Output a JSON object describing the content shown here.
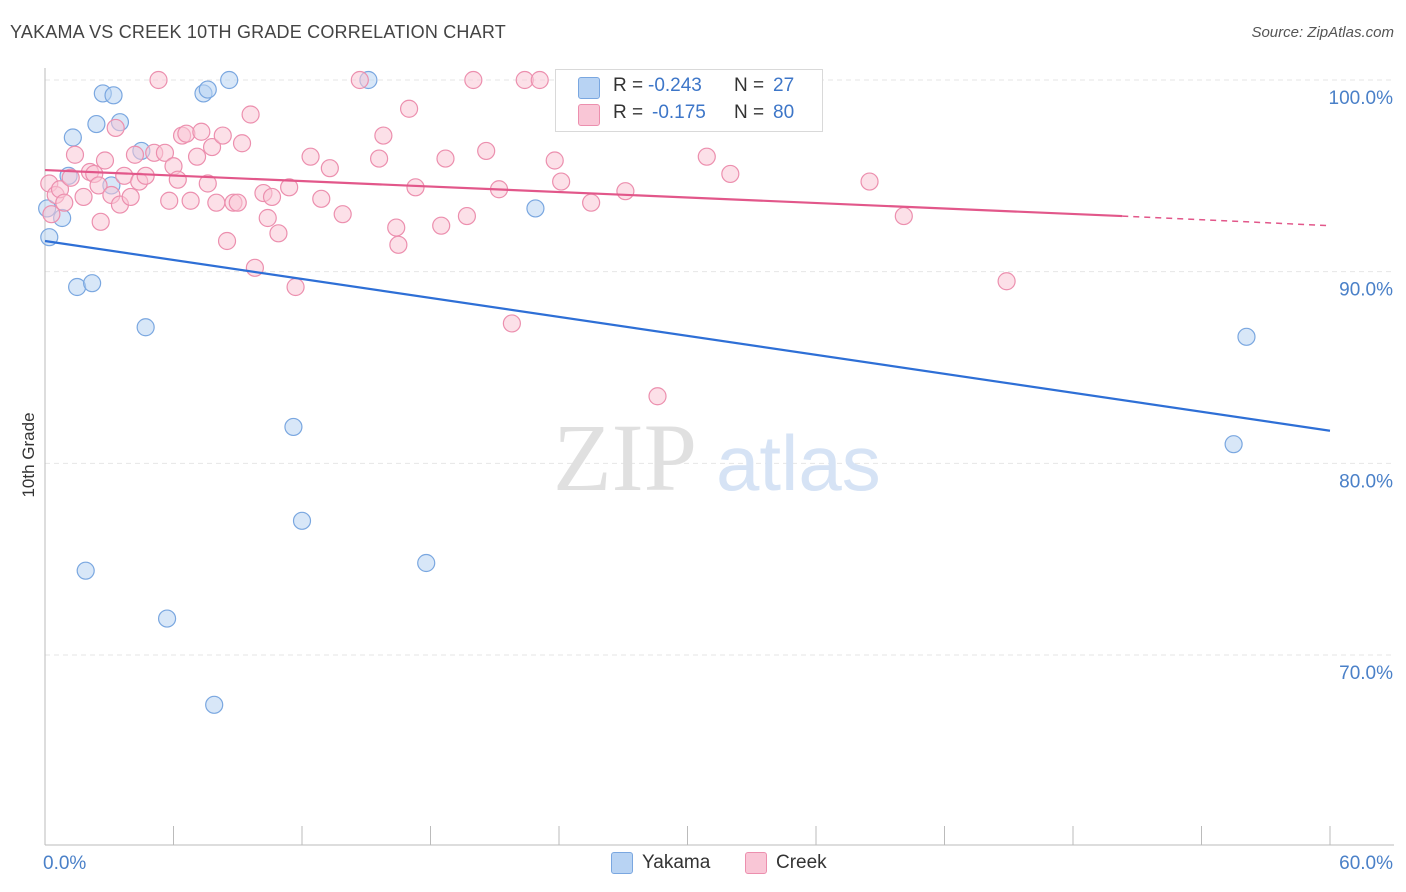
{
  "title": "YAKAMA VS CREEK 10TH GRADE CORRELATION CHART",
  "source": "Source: ZipAtlas.com",
  "watermark": {
    "zip": "ZIP",
    "atlas": "atlas"
  },
  "legend": {
    "rows": [
      {
        "r_label": "R =",
        "r_value": "-0.243",
        "n_label": "N =",
        "n_value": "27",
        "color": "#b8d3f3",
        "border": "#7aa7e0"
      },
      {
        "r_label": "R =",
        "r_value": "-0.175",
        "n_label": "N =",
        "n_value": "80",
        "color": "#f9c6d6",
        "border": "#ec8fae"
      }
    ]
  },
  "bottom_legend": [
    {
      "label": "Yakama",
      "color": "#b8d3f3",
      "border": "#7aa7e0"
    },
    {
      "label": "Creek",
      "color": "#f9c6d6",
      "border": "#ec8fae"
    }
  ],
  "chart_data": {
    "type": "scatter",
    "title": "YAKAMA VS CREEK 10TH GRADE CORRELATION CHART",
    "xlabel": "",
    "ylabel": "10th Grade",
    "xlim": [
      0,
      60
    ],
    "ylim": [
      60,
      101.5
    ],
    "x_tick_labels": [
      {
        "value": 0,
        "label": "0.0%"
      },
      {
        "value": 60,
        "label": "60.0%"
      }
    ],
    "y_tick_labels": [
      {
        "value": 100,
        "label": "100.0%"
      },
      {
        "value": 90,
        "label": "90.0%"
      },
      {
        "value": 80,
        "label": "80.0%"
      },
      {
        "value": 70,
        "label": "70.0%"
      }
    ],
    "grid": true,
    "series": [
      {
        "name": "Yakama",
        "color": "#b8d3f3",
        "stroke": "#7aa7e0",
        "line_color": "#2e6fd6",
        "trend": {
          "x": [
            0,
            60
          ],
          "y": [
            91.6,
            81.7
          ]
        },
        "points": [
          [
            0.1,
            93.3
          ],
          [
            0.2,
            91.8
          ],
          [
            0.8,
            92.8
          ],
          [
            1.1,
            95.0
          ],
          [
            1.3,
            97.0
          ],
          [
            1.5,
            89.2
          ],
          [
            1.9,
            74.4
          ],
          [
            2.2,
            89.4
          ],
          [
            2.4,
            97.7
          ],
          [
            2.7,
            99.3
          ],
          [
            3.2,
            99.2
          ],
          [
            3.1,
            94.5
          ],
          [
            3.5,
            97.8
          ],
          [
            4.5,
            96.3
          ],
          [
            4.7,
            87.1
          ],
          [
            5.7,
            71.9
          ],
          [
            7.4,
            99.3
          ],
          [
            7.6,
            99.5
          ],
          [
            7.9,
            67.4
          ],
          [
            8.6,
            100.0
          ],
          [
            11.6,
            81.9
          ],
          [
            12.0,
            77.0
          ],
          [
            15.1,
            100.0
          ],
          [
            17.8,
            74.8
          ],
          [
            22.9,
            93.3
          ],
          [
            56.1,
            86.6
          ],
          [
            55.5,
            81.0
          ]
        ]
      },
      {
        "name": "Creek",
        "color": "#f9c6d6",
        "stroke": "#ec8fae",
        "line_color": "#e2578a",
        "trend": {
          "x": [
            0,
            50.3
          ],
          "y": [
            95.3,
            92.9
          ]
        },
        "trend_dashed": {
          "x": [
            50.3,
            60
          ],
          "y": [
            92.9,
            92.4
          ]
        },
        "points": [
          [
            0.2,
            94.6
          ],
          [
            0.3,
            93.0
          ],
          [
            0.5,
            94.0
          ],
          [
            0.7,
            94.3
          ],
          [
            0.9,
            93.6
          ],
          [
            1.2,
            94.9
          ],
          [
            1.4,
            96.1
          ],
          [
            1.8,
            93.9
          ],
          [
            2.1,
            95.2
          ],
          [
            2.3,
            95.1
          ],
          [
            2.5,
            94.5
          ],
          [
            2.6,
            92.6
          ],
          [
            2.8,
            95.8
          ],
          [
            3.1,
            94.0
          ],
          [
            3.3,
            97.5
          ],
          [
            3.5,
            93.5
          ],
          [
            3.7,
            95.0
          ],
          [
            4.0,
            93.9
          ],
          [
            4.2,
            96.1
          ],
          [
            4.4,
            94.7
          ],
          [
            4.7,
            95.0
          ],
          [
            5.1,
            96.2
          ],
          [
            5.3,
            100.0
          ],
          [
            5.6,
            96.2
          ],
          [
            5.8,
            93.7
          ],
          [
            6.0,
            95.5
          ],
          [
            6.2,
            94.8
          ],
          [
            6.4,
            97.1
          ],
          [
            6.6,
            97.2
          ],
          [
            6.8,
            93.7
          ],
          [
            7.1,
            96.0
          ],
          [
            7.3,
            97.3
          ],
          [
            7.6,
            94.6
          ],
          [
            7.8,
            96.5
          ],
          [
            8.0,
            93.6
          ],
          [
            8.3,
            97.1
          ],
          [
            8.5,
            91.6
          ],
          [
            8.8,
            93.6
          ],
          [
            9.0,
            93.6
          ],
          [
            9.2,
            96.7
          ],
          [
            9.6,
            98.2
          ],
          [
            9.8,
            90.2
          ],
          [
            10.2,
            94.1
          ],
          [
            10.4,
            92.8
          ],
          [
            10.6,
            93.9
          ],
          [
            10.9,
            92.0
          ],
          [
            11.4,
            94.4
          ],
          [
            11.7,
            89.2
          ],
          [
            12.4,
            96.0
          ],
          [
            12.9,
            93.8
          ],
          [
            13.3,
            95.4
          ],
          [
            13.9,
            93.0
          ],
          [
            14.7,
            100.0
          ],
          [
            15.6,
            95.9
          ],
          [
            15.8,
            97.1
          ],
          [
            16.4,
            92.3
          ],
          [
            16.5,
            91.4
          ],
          [
            17.0,
            98.5
          ],
          [
            17.3,
            94.4
          ],
          [
            18.5,
            92.4
          ],
          [
            18.7,
            95.9
          ],
          [
            19.7,
            92.9
          ],
          [
            20.0,
            100.0
          ],
          [
            20.6,
            96.3
          ],
          [
            21.2,
            94.3
          ],
          [
            21.8,
            87.3
          ],
          [
            22.4,
            100.0
          ],
          [
            23.1,
            100.0
          ],
          [
            23.8,
            95.8
          ],
          [
            24.1,
            94.7
          ],
          [
            25.0,
            97.9
          ],
          [
            25.5,
            93.6
          ],
          [
            27.1,
            94.2
          ],
          [
            28.6,
            83.5
          ],
          [
            30.9,
            96.0
          ],
          [
            32.0,
            95.1
          ],
          [
            38.5,
            94.7
          ],
          [
            40.1,
            92.9
          ],
          [
            44.9,
            89.5
          ],
          [
            25.3,
            100.0
          ]
        ]
      }
    ]
  }
}
